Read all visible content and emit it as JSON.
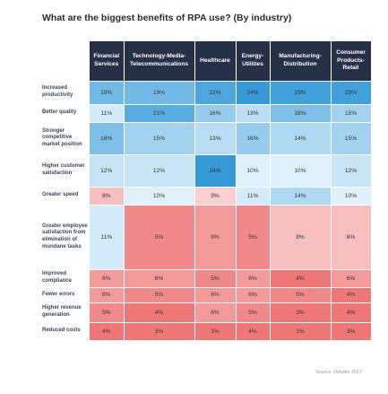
{
  "title": "What are the biggest benefits of RPA use? (By industry)",
  "source": "Source: Deloitte 2017",
  "colors": {
    "header_bg": "#263047",
    "high_blue": "#3f9fd8",
    "low_red": "#f07a7a"
  },
  "chart_data": {
    "type": "heatmap",
    "title": "What are the biggest benefits of RPA use? (By industry)",
    "columns": [
      "Financial Services",
      "Technology-Media-Telecommunications",
      "Healthcare",
      "Energy-Utilities",
      "Manufacturing-Distribution",
      "Consumer Products-Retail"
    ],
    "rows": [
      {
        "label": "Increased productivity",
        "values": [
          "19%",
          "19%",
          "22%",
          "24%",
          "23%",
          "23%"
        ]
      },
      {
        "label": "Better quality",
        "values": [
          "11%",
          "21%",
          "16%",
          "13%",
          "18%",
          "15%"
        ]
      },
      {
        "label": "Stronger competitive market position",
        "values": [
          "18%",
          "15%",
          "13%",
          "16%",
          "14%",
          "15%"
        ]
      },
      {
        "label": "Higher customer satisfaction",
        "values": [
          "12%",
          "12%",
          "24%",
          "10%",
          "10%",
          "12%"
        ]
      },
      {
        "label": "Greater speed",
        "values": [
          "8%",
          "10%",
          "9%",
          "11%",
          "14%",
          "10%"
        ]
      },
      {
        "label": "Greater employee satisfaction from elimination of mundane tasks",
        "values": [
          "11%",
          "5%",
          "6%",
          "5%",
          "8%",
          "8%"
        ]
      },
      {
        "label": "Improved compliance",
        "values": [
          "6%",
          "6%",
          "5%",
          "6%",
          "4%",
          "6%"
        ]
      },
      {
        "label": "Fewer errors",
        "values": [
          "6%",
          "5%",
          "6%",
          "6%",
          "5%",
          "4%"
        ]
      },
      {
        "label": "Higher revenue generation",
        "values": [
          "5%",
          "4%",
          "6%",
          "5%",
          "3%",
          "4%"
        ]
      },
      {
        "label": "Reduced costs",
        "values": [
          "4%",
          "3%",
          "3%",
          "4%",
          "1%",
          "3%"
        ]
      }
    ]
  }
}
